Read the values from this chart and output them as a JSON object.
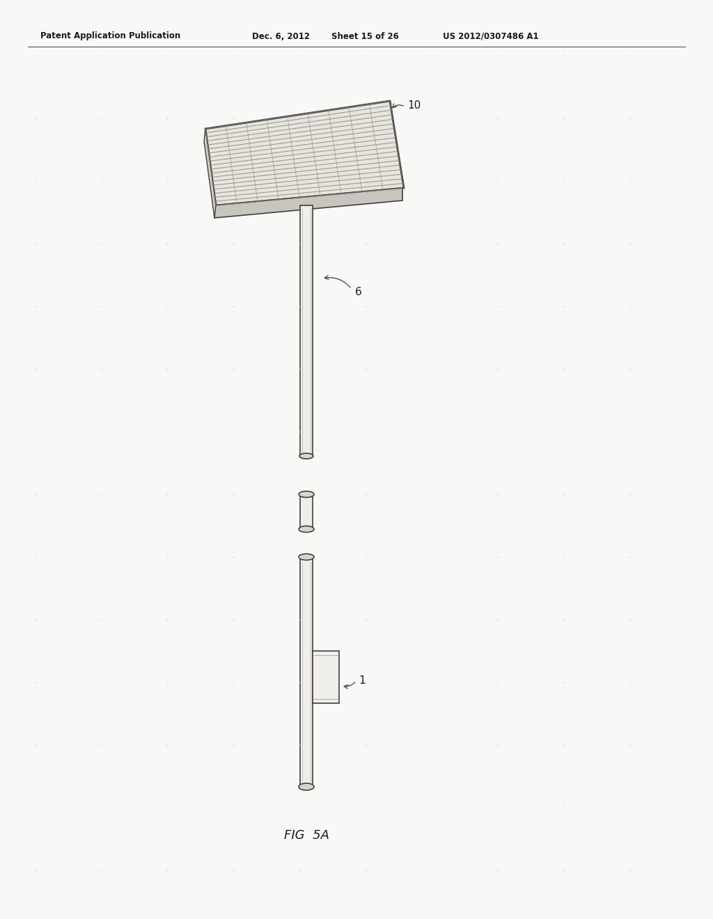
{
  "bg_color": "#f8f8f6",
  "header_text": "Patent Application Publication",
  "header_date": "Dec. 6, 2012",
  "header_sheet": "Sheet 15 of 26",
  "header_patent": "US 2012/0307486 A1",
  "fig_label": "FIG  5A",
  "label_10": "10",
  "label_6": "6",
  "label_1": "1",
  "line_color": "#404040",
  "text_color": "#1a1a1a",
  "grid_color": "#cccccc",
  "pole_fill": "#f0eeea",
  "lamp_fill": "#e8e5de",
  "lamp_dark": "#c8c5be",
  "ellipse_fill": "#d8d5ce"
}
